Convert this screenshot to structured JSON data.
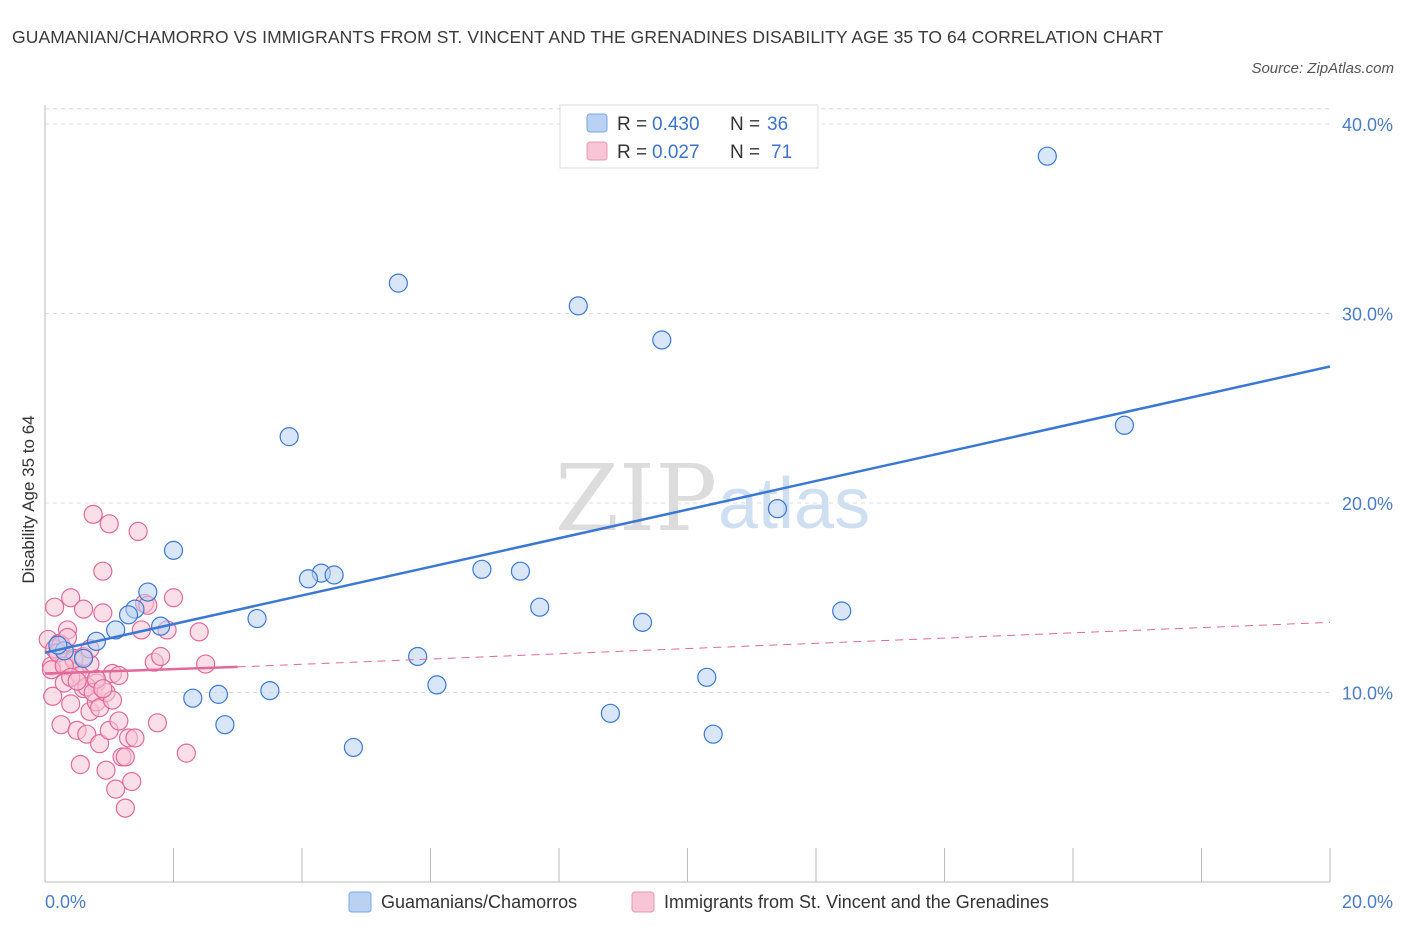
{
  "title": "GUAMANIAN/CHAMORRO VS IMMIGRANTS FROM ST. VINCENT AND THE GRENADINES DISABILITY AGE 35 TO 64 CORRELATION CHART",
  "source": "Source: ZipAtlas.com",
  "watermark": {
    "zip": "ZIP",
    "atlas": "atlas"
  },
  "colors": {
    "blue": "#3a78d4",
    "blue_fill": "#b9d2f3",
    "pink": "#e0699a",
    "pink_fill": "#f7c5d6",
    "tick": "#4a7cc7",
    "grid": "#dddddd"
  },
  "legend": {
    "rows": [
      {
        "r_label": "R =",
        "r_value": "0.430",
        "n_label": "N =",
        "n_value": "36"
      },
      {
        "r_label": "R =",
        "r_value": "0.027",
        "n_label": "N =",
        "n_value": "71"
      }
    ]
  },
  "chart_data": {
    "type": "scatter",
    "title": "GUAMANIAN/CHAMORRO VS IMMIGRANTS FROM ST. VINCENT AND THE GRENADINES DISABILITY AGE 35 TO 64 CORRELATION CHART",
    "xlabel": "",
    "ylabel": "Disability Age 35 to 64",
    "xlim": [
      0,
      20
    ],
    "ylim": [
      0,
      41
    ],
    "x_tick_labels": [
      "0.0%",
      "20.0%"
    ],
    "y_ticks": [
      10,
      20,
      30,
      40
    ],
    "y_tick_labels": [
      "10.0%",
      "20.0%",
      "30.0%",
      "40.0%"
    ],
    "grid": true,
    "legend_position": "top-center",
    "series": [
      {
        "name": "Guamanians/Chamorros",
        "color": "#3a78d4",
        "trend": {
          "x": [
            0,
            20
          ],
          "y": [
            12.1,
            27.2
          ]
        },
        "x": [
          0.3,
          0.8,
          1.1,
          1.4,
          1.6,
          1.8,
          2.0,
          2.3,
          2.8,
          3.3,
          3.5,
          3.8,
          4.3,
          4.5,
          4.8,
          5.5,
          5.8,
          6.1,
          6.8,
          7.4,
          7.7,
          8.3,
          8.8,
          9.3,
          9.6,
          10.3,
          10.4,
          11.4,
          12.4,
          15.6,
          16.8,
          1.3,
          0.6,
          2.7,
          4.1,
          0.2
        ],
        "y": [
          12.2,
          12.7,
          13.3,
          14.4,
          15.3,
          13.5,
          17.5,
          9.7,
          8.3,
          13.9,
          10.1,
          23.5,
          16.3,
          16.2,
          7.1,
          31.6,
          11.9,
          10.4,
          16.5,
          16.4,
          14.5,
          30.4,
          8.9,
          13.7,
          28.6,
          10.8,
          7.8,
          19.7,
          14.3,
          38.3,
          24.1,
          14.1,
          11.8,
          9.9,
          16.0,
          12.5
        ]
      },
      {
        "name": "Immigrants from St. Vincent and the Grenadines",
        "color": "#e0699a",
        "trend": {
          "x": [
            0,
            3.0
          ],
          "y": [
            11.0,
            11.35
          ],
          "dashed_extension": {
            "x": [
              3.0,
              20
            ],
            "y": [
              11.35,
              13.7
            ]
          }
        },
        "x": [
          0.05,
          0.1,
          0.12,
          0.15,
          0.2,
          0.22,
          0.25,
          0.3,
          0.3,
          0.35,
          0.4,
          0.4,
          0.45,
          0.5,
          0.5,
          0.55,
          0.6,
          0.6,
          0.65,
          0.7,
          0.7,
          0.75,
          0.8,
          0.8,
          0.85,
          0.9,
          0.9,
          0.95,
          1.0,
          1.0,
          1.05,
          1.1,
          1.15,
          1.2,
          1.25,
          1.3,
          1.35,
          1.4,
          1.45,
          1.5,
          1.55,
          1.6,
          1.7,
          1.75,
          1.8,
          1.9,
          2.0,
          2.2,
          2.4,
          2.5,
          0.15,
          0.25,
          0.35,
          0.45,
          0.55,
          0.65,
          0.75,
          0.85,
          0.95,
          1.05,
          1.15,
          1.25,
          0.1,
          0.2,
          0.3,
          0.4,
          0.5,
          0.6,
          0.7,
          0.8,
          0.9
        ],
        "y": [
          12.8,
          11.4,
          9.8,
          14.5,
          12.1,
          12.6,
          8.3,
          11.6,
          10.5,
          13.3,
          15.0,
          9.4,
          11.8,
          11.1,
          8.0,
          6.2,
          14.4,
          10.2,
          7.8,
          11.5,
          9.0,
          19.4,
          10.5,
          9.5,
          7.3,
          16.4,
          14.2,
          5.9,
          18.9,
          8.0,
          11.0,
          4.9,
          10.9,
          6.6,
          6.6,
          7.6,
          5.3,
          7.6,
          18.5,
          13.3,
          14.7,
          14.6,
          11.6,
          8.4,
          11.9,
          13.3,
          15.0,
          6.8,
          13.2,
          11.5,
          12.3,
          12.5,
          12.9,
          11.7,
          10.9,
          10.3,
          10.0,
          9.2,
          10.0,
          9.6,
          8.5,
          3.9,
          11.2,
          12.1,
          11.4,
          10.8,
          10.6,
          11.9,
          12.3,
          10.7,
          10.2
        ]
      }
    ]
  }
}
